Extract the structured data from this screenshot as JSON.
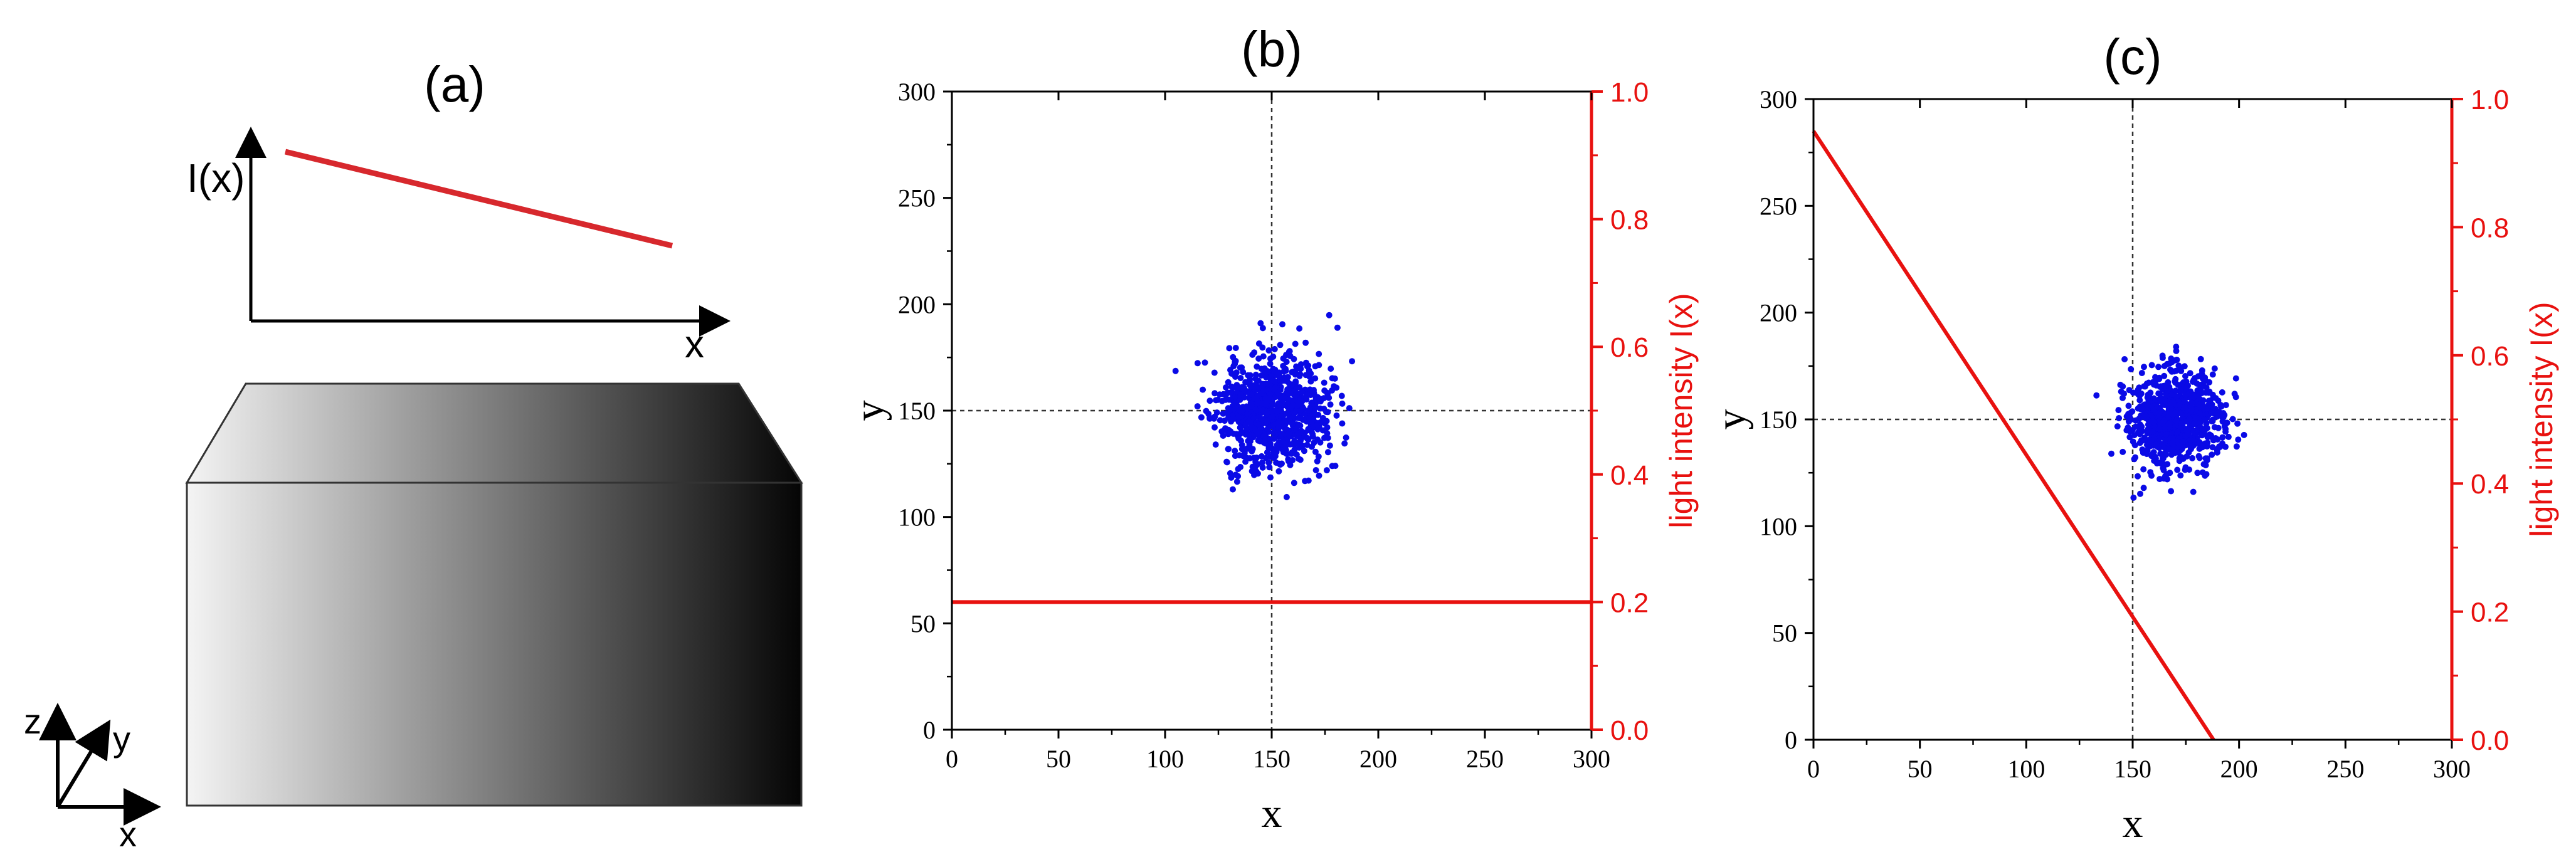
{
  "colors": {
    "axis": "#000000",
    "intensity": "#e8110f",
    "intensity_a": "#d7282d",
    "points": "#0a0ae6",
    "guide": "#333333"
  },
  "panel_a": {
    "label": "(a)",
    "ylabel": "I(x)",
    "xlabel": "x",
    "intensity_line": {
      "start": 0.9,
      "end": 0.4
    },
    "block_gradient": {
      "from": "#f4f4f4",
      "to": "#050505"
    },
    "triad": {
      "z": "z",
      "y": "y",
      "x": "x"
    }
  },
  "chart_data": [
    {
      "type": "scatter",
      "title": "(b)",
      "xlabel": "x",
      "ylabel": "y",
      "y2label": "light intensity I(x)",
      "xlim": [
        0,
        300
      ],
      "ylim": [
        0,
        300
      ],
      "y2lim": [
        0.0,
        1.0
      ],
      "xticks": [
        "0",
        "50",
        "100",
        "150",
        "200",
        "250",
        "300"
      ],
      "yticks": [
        "0",
        "50",
        "100",
        "150",
        "200",
        "250",
        "300"
      ],
      "y2ticks": [
        "0.0",
        "0.2",
        "0.4",
        "0.6",
        "0.8",
        "1.0"
      ],
      "guides": {
        "x": 150,
        "y": 150
      },
      "cluster": {
        "center": [
          150,
          150
        ],
        "spread": [
          13,
          13
        ],
        "count": 900
      },
      "intensity": [
        {
          "x": 0,
          "y": 0.2
        },
        {
          "x": 300,
          "y": 0.2
        }
      ]
    },
    {
      "type": "scatter",
      "title": "(c)",
      "xlabel": "x",
      "ylabel": "y",
      "y2label": "light intensity I(x)",
      "xlim": [
        0,
        300
      ],
      "ylim": [
        0,
        300
      ],
      "y2lim": [
        0.0,
        1.0
      ],
      "xticks": [
        "0",
        "50",
        "100",
        "150",
        "200",
        "250",
        "300"
      ],
      "yticks": [
        "0",
        "50",
        "100",
        "150",
        "200",
        "250",
        "300"
      ],
      "y2ticks": [
        "0.0",
        "0.2",
        "0.4",
        "0.6",
        "0.8",
        "1.0"
      ],
      "guides": {
        "x": 150,
        "y": 150
      },
      "cluster": {
        "center": [
          170,
          150
        ],
        "spread": [
          11,
          11
        ],
        "count": 850
      },
      "intensity": [
        {
          "x": 0,
          "y": 0.95
        },
        {
          "x": 188,
          "y": 0.0
        }
      ]
    }
  ]
}
